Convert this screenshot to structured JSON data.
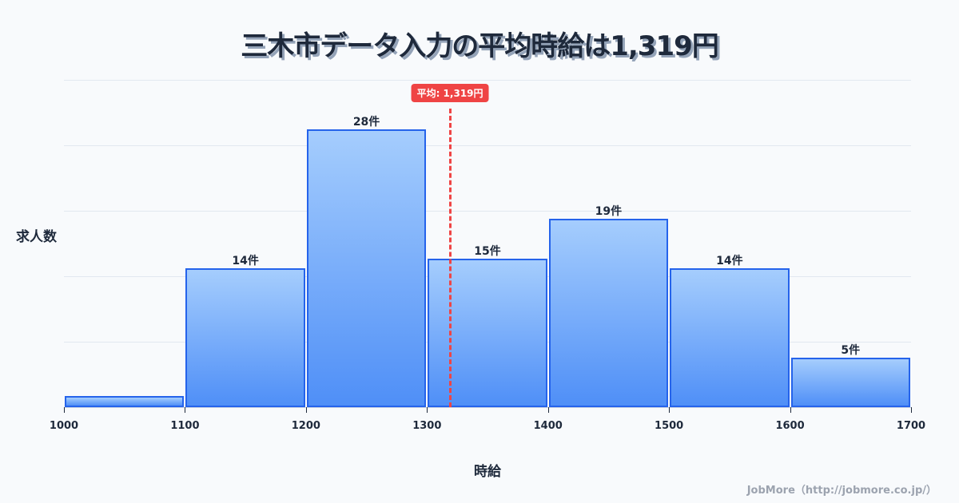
{
  "title": "三木市データ入力の平均時給は1,319円",
  "chart_data": {
    "type": "bar",
    "title": "三木市データ入力の平均時給は1,319円",
    "xlabel": "時給",
    "ylabel": "求人数",
    "categories": [
      "1000-1100",
      "1100-1200",
      "1200-1300",
      "1300-1400",
      "1400-1500",
      "1500-1600",
      "1600-1700"
    ],
    "bin_edges": [
      1000,
      1100,
      1200,
      1300,
      1400,
      1500,
      1600,
      1700
    ],
    "values": [
      1,
      14,
      28,
      15,
      19,
      14,
      5
    ],
    "bar_labels": [
      "",
      "14件",
      "28件",
      "15件",
      "19件",
      "14件",
      "5件"
    ],
    "x_ticks": [
      "1000",
      "1100",
      "1200",
      "1300",
      "1400",
      "1500",
      "1600",
      "1700"
    ],
    "ylim": [
      0,
      33
    ],
    "grid": true,
    "average": {
      "value": 1319,
      "label": "平均: 1,319円"
    }
  },
  "colors": {
    "bar_fill_top": "#a5cdfd",
    "bar_fill_bottom": "#4f8ff7",
    "bar_border": "#2563eb",
    "average_line": "#ef4444"
  },
  "credit": "JobMore（http://jobmore.co.jp/）"
}
